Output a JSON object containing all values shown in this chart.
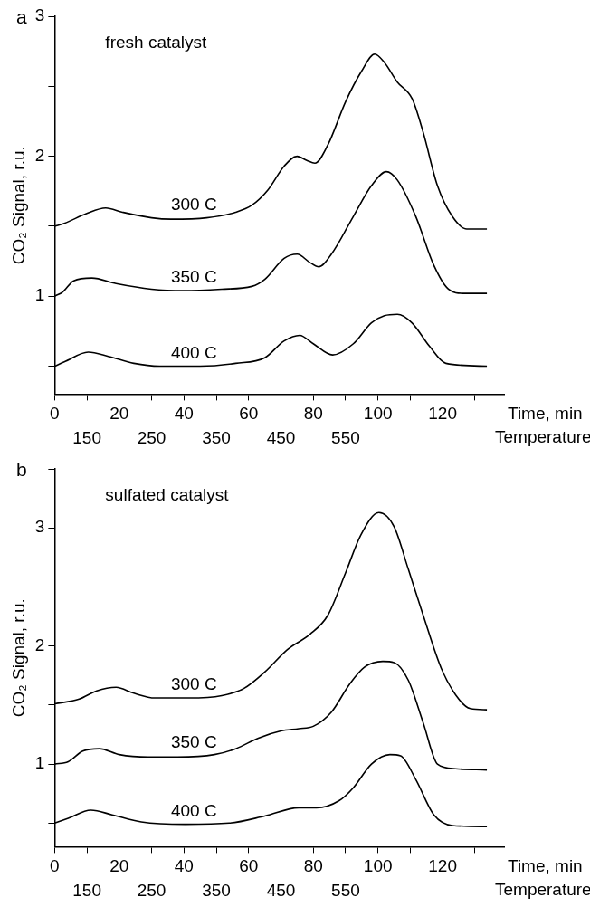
{
  "chart_data": [
    {
      "type": "line",
      "title": "a",
      "xlabel": "Time, min",
      "x2label": "Temperature",
      "ylabel": "CO₂ Signal, r.u.",
      "xlim": [
        0,
        139
      ],
      "xticks": [
        0,
        {
          "value": 10,
          "label": null
        },
        20,
        {
          "value": 30,
          "label": null
        },
        40,
        {
          "value": 50,
          "label": null
        },
        60,
        {
          "value": 70,
          "label": null
        },
        80,
        {
          "value": 90,
          "label": null
        },
        100,
        {
          "value": 110,
          "label": null
        },
        120,
        {
          "value": 130,
          "label": null
        }
      ],
      "x2lim": [
        100,
        795
      ],
      "x2ticks": [
        150,
        250,
        350,
        450,
        550
      ],
      "ylim": [
        0.3,
        3
      ],
      "yticks": [
        {
          "value": 0.5,
          "label": null
        },
        1,
        {
          "value": 1.5,
          "label": null
        },
        2,
        {
          "value": 2.5,
          "label": null
        },
        3
      ],
      "grid": false,
      "legend": false,
      "marker": "none",
      "line_style": "solid",
      "annotations": [
        "fresh catalyst"
      ],
      "series": [
        {
          "name": "300 C",
          "color": "#000000",
          "x": [
            0,
            3,
            9.8,
            15.8,
            21,
            30,
            36,
            47,
            56,
            61,
            66,
            71,
            75,
            78,
            80.5,
            84.5,
            90,
            95,
            99,
            102,
            106,
            110.6,
            114,
            118.4,
            123,
            127.5,
            133.7
          ],
          "values": [
            1.5,
            1.52,
            1.59,
            1.63,
            1.6,
            1.56,
            1.55,
            1.56,
            1.6,
            1.65,
            1.76,
            1.93,
            2.0,
            1.97,
            1.95,
            2.08,
            2.39,
            2.61,
            2.73,
            2.67,
            2.53,
            2.41,
            2.17,
            1.79,
            1.57,
            1.48,
            1.48
          ]
        },
        {
          "name": "350 C",
          "color": "#000000",
          "x": [
            0,
            2.5,
            5.9,
            11.5,
            19,
            30,
            40,
            51.7,
            61,
            65,
            71,
            75,
            79,
            81.7,
            85.6,
            92.4,
            98,
            102.6,
            106,
            111.7,
            117.3,
            121.8,
            126.4,
            133.7
          ],
          "values": [
            1.0,
            1.03,
            1.11,
            1.13,
            1.09,
            1.05,
            1.04,
            1.05,
            1.07,
            1.12,
            1.27,
            1.3,
            1.24,
            1.21,
            1.3,
            1.57,
            1.79,
            1.89,
            1.83,
            1.57,
            1.22,
            1.05,
            1.02,
            1.02
          ]
        },
        {
          "name": "400 C",
          "color": "#000000",
          "x": [
            0,
            3,
            10.4,
            16.6,
            24.5,
            32.5,
            45,
            56,
            65,
            71,
            75.8,
            80,
            86,
            92.4,
            98,
            102,
            106,
            110.5,
            116,
            121,
            133.7
          ],
          "values": [
            0.5,
            0.53,
            0.6,
            0.57,
            0.52,
            0.5,
            0.5,
            0.52,
            0.56,
            0.68,
            0.72,
            0.66,
            0.58,
            0.66,
            0.81,
            0.86,
            0.87,
            0.81,
            0.64,
            0.52,
            0.5
          ]
        }
      ]
    },
    {
      "type": "line",
      "title": "b",
      "xlabel": "Time, min",
      "x2label": "Temperature",
      "ylabel": "CO₂ Signal, r.u.",
      "xlim": [
        0,
        139
      ],
      "xticks": [
        0,
        {
          "value": 10,
          "label": null
        },
        20,
        {
          "value": 30,
          "label": null
        },
        40,
        {
          "value": 50,
          "label": null
        },
        60,
        {
          "value": 70,
          "label": null
        },
        80,
        {
          "value": 90,
          "label": null
        },
        100,
        {
          "value": 110,
          "label": null
        },
        120,
        {
          "value": 130,
          "label": null
        }
      ],
      "x2lim": [
        100,
        795
      ],
      "x2ticks": [
        150,
        250,
        350,
        450,
        550
      ],
      "ylim": [
        0.3,
        3.5
      ],
      "yticks": [
        {
          "value": 0.5,
          "label": null
        },
        1,
        {
          "value": 1.5,
          "label": null
        },
        2,
        {
          "value": 2.5,
          "label": null
        },
        3,
        {
          "value": 3.5,
          "label": null
        }
      ],
      "grid": false,
      "legend": false,
      "marker": "none",
      "line_style": "solid",
      "annotations": [
        "sulfated catalyst"
      ],
      "series": [
        {
          "name": "300 C",
          "color": "#000000",
          "x": [
            0,
            7.6,
            13,
            19,
            24.5,
            31,
            41.5,
            51.7,
            58.5,
            65,
            72,
            79,
            84.5,
            90,
            94.7,
            100.3,
            105,
            109.4,
            114,
            119.6,
            125,
            128.6,
            133.7
          ],
          "values": [
            1.51,
            1.55,
            1.62,
            1.65,
            1.6,
            1.56,
            1.56,
            1.58,
            1.64,
            1.78,
            1.97,
            2.1,
            2.26,
            2.62,
            2.94,
            3.13,
            3.01,
            2.65,
            2.26,
            1.81,
            1.55,
            1.47,
            1.46
          ]
        },
        {
          "name": "350 C",
          "color": "#000000",
          "x": [
            0,
            4.2,
            8.7,
            13.8,
            20,
            29,
            38,
            49.4,
            56,
            63,
            70,
            75.5,
            80,
            85.6,
            91.3,
            95.8,
            101.5,
            105,
            109.4,
            114,
            118.4,
            124,
            133.7
          ],
          "values": [
            1.0,
            1.02,
            1.11,
            1.13,
            1.08,
            1.06,
            1.06,
            1.08,
            1.13,
            1.22,
            1.28,
            1.3,
            1.32,
            1.44,
            1.68,
            1.82,
            1.87,
            1.86,
            1.71,
            1.35,
            1.0,
            0.96,
            0.95
          ]
        },
        {
          "name": "400 C",
          "color": "#000000",
          "x": [
            0,
            4.2,
            11.2,
            17.8,
            26.8,
            40.4,
            54,
            65,
            75.5,
            81,
            88,
            92.4,
            98,
            103.7,
            107,
            111.7,
            117.3,
            123,
            133.7
          ],
          "values": [
            0.5,
            0.54,
            0.61,
            0.57,
            0.51,
            0.49,
            0.5,
            0.56,
            0.63,
            0.63,
            0.69,
            0.8,
            1.0,
            1.08,
            1.07,
            0.87,
            0.57,
            0.48,
            0.47
          ]
        }
      ]
    }
  ]
}
